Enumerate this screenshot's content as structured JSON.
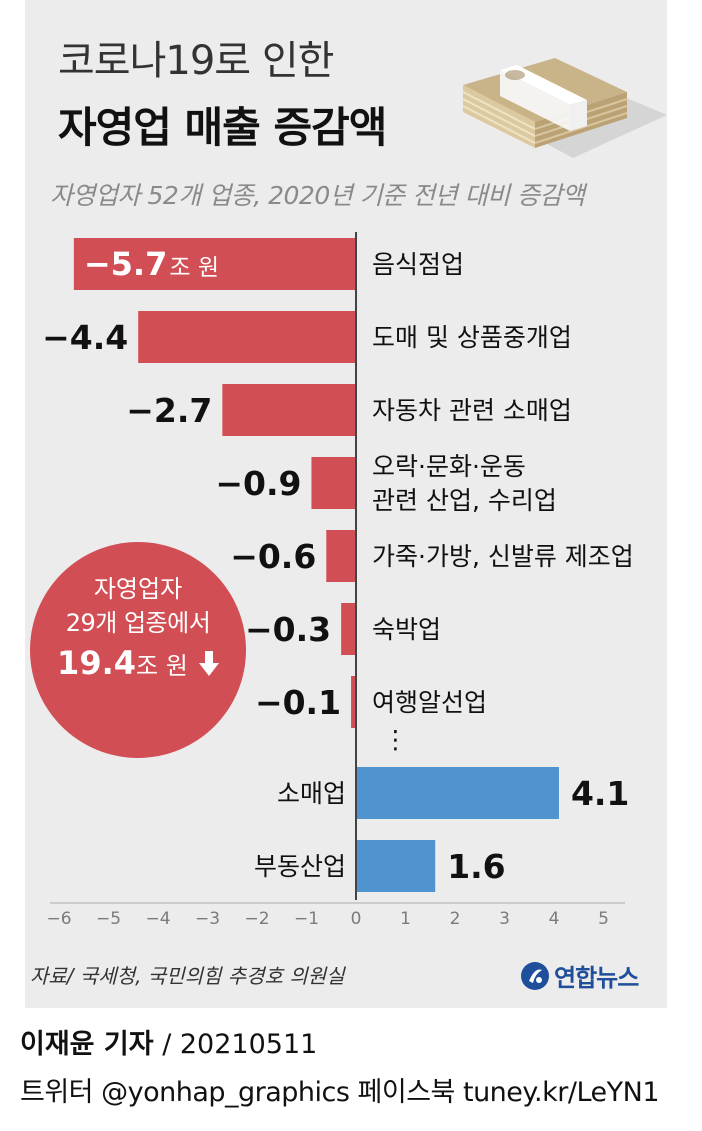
{
  "header": {
    "title_line1": "코로나19로 인한",
    "title_line2": "자영업 매출 증감액",
    "subtitle": "자영업자 52개 업종, 2020년 기준 전년 대비 증감액"
  },
  "badge": {
    "line1": "자영업자",
    "line2": "29개 업종에서",
    "value": "19.4",
    "unit": "조 원",
    "arrow": "down-arrow-icon"
  },
  "footer": {
    "source": "자료/ 국세청, 국민의힘 추경호 의원실",
    "logo_text": "연합뉴스",
    "author": "이재윤 기자",
    "date": "/ 20210511",
    "social": "트위터 @yonhap_graphics  페이스북 tuney.kr/LeYN1"
  },
  "colors": {
    "negative": "#d24e55",
    "positive": "#4f93cf",
    "panel": "#ececec",
    "axis": "#444444"
  },
  "chart_data": {
    "type": "bar",
    "orientation": "horizontal",
    "unit": "조 원",
    "xlim": [
      -6,
      5
    ],
    "ticks": [
      "−6",
      "−5",
      "−4",
      "−3",
      "−2",
      "−1",
      "0",
      "1",
      "2",
      "3",
      "4",
      "5"
    ],
    "ellipsis": "⋮",
    "bars": [
      {
        "label": [
          "음식점업"
        ],
        "value": -5.7,
        "value_text": "−5.7",
        "unit_text": "조 원"
      },
      {
        "label": [
          "도매 및 상품중개업"
        ],
        "value": -4.4,
        "value_text": "−4.4"
      },
      {
        "label": [
          "자동차 관련 소매업"
        ],
        "value": -2.7,
        "value_text": "−2.7"
      },
      {
        "label": [
          "오락·문화·운동",
          "관련 산업, 수리업"
        ],
        "value": -0.9,
        "value_text": "−0.9"
      },
      {
        "label": [
          "가죽·가방, 신발류 제조업"
        ],
        "value": -0.6,
        "value_text": "−0.6"
      },
      {
        "label": [
          "숙박업"
        ],
        "value": -0.3,
        "value_text": "−0.3"
      },
      {
        "label": [
          "여행알선업"
        ],
        "value": -0.1,
        "value_text": "−0.1"
      },
      {
        "label": [
          "소매업"
        ],
        "value": 4.1,
        "value_text": "4.1"
      },
      {
        "label": [
          "부동산업"
        ],
        "value": 1.6,
        "value_text": "1.6"
      }
    ]
  }
}
